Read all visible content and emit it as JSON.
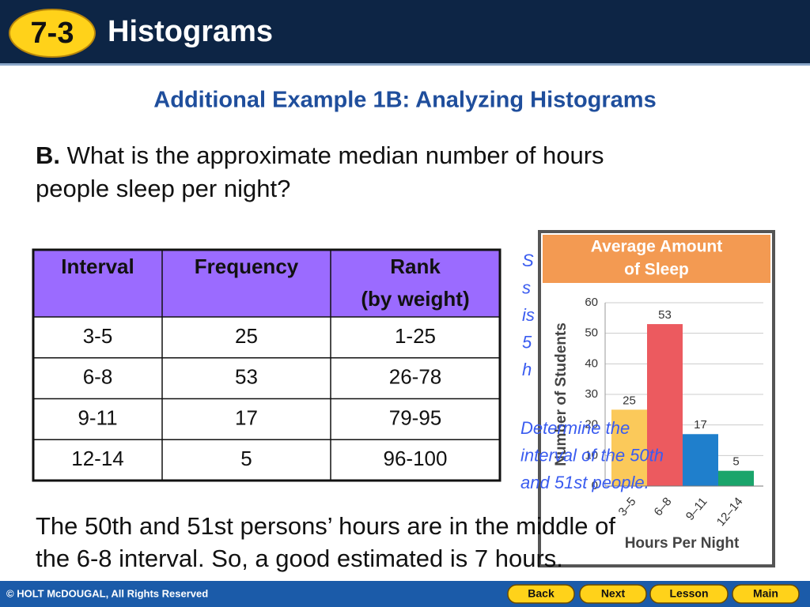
{
  "header": {
    "badge": "7-3",
    "title": "Histograms"
  },
  "subtitle": "Additional Example 1B: Analyzing Histograms",
  "question": {
    "label": "B.",
    "lines": [
      "What is the approximate median number of hours",
      "people sleep per night?"
    ]
  },
  "table": {
    "headers": [
      [
        "Interval"
      ],
      [
        "Frequency"
      ],
      [
        "Rank",
        "(by weight)"
      ]
    ],
    "rows": [
      [
        "3-5",
        "25",
        "1-25"
      ],
      [
        "6-8",
        "53",
        "26-78"
      ],
      [
        "9-11",
        "17",
        "79-95"
      ],
      [
        "12-14",
        "5",
        "96-100"
      ]
    ]
  },
  "hidden_fragments": [
    "S",
    "s",
    "is",
    "5",
    "h"
  ],
  "hint": [
    "Determine the",
    "interval of the 50th",
    "and 51st people."
  ],
  "answer": [
    "The 50th and 51st persons’ hours are in the middle of",
    "the 6-8 interval. So, a good estimated is 7 hours."
  ],
  "chart_data": {
    "type": "bar",
    "title": [
      "Average Amount",
      "of Sleep"
    ],
    "ylabel": "Number of Students",
    "xlabel": "Hours Per Night",
    "categories": [
      "3–5",
      "6–8",
      "9–11",
      "12–14"
    ],
    "values": [
      25,
      53,
      17,
      5
    ],
    "colors": [
      "#fbc95a",
      "#ec5a5f",
      "#1f7fcc",
      "#1aa56b"
    ],
    "ylim": [
      0,
      60
    ],
    "yticks": [
      0,
      10,
      20,
      30,
      40,
      50,
      60
    ],
    "grid": true
  },
  "footer": {
    "copyright": "© HOLT McDOUGAL, All Rights Reserved",
    "buttons": [
      "Back",
      "Next",
      "Lesson",
      "Main"
    ]
  }
}
